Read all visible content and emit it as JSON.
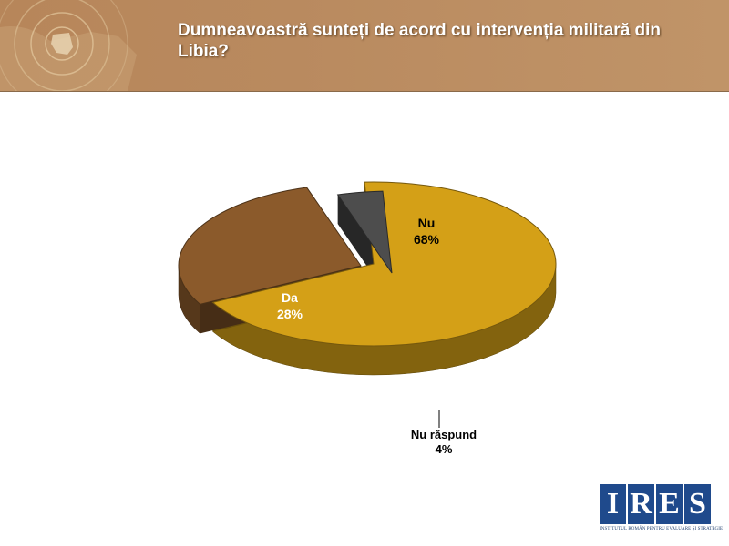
{
  "header": {
    "title": "Dumneavoastră sunteți de acord cu intervenția militară din Libia?"
  },
  "chart_data": {
    "type": "pie",
    "title": "",
    "slices": [
      {
        "label": "Nu",
        "value": 68,
        "value_label": "68%",
        "color": "#d4a017"
      },
      {
        "label": "Da",
        "value": 28,
        "value_label": "28%",
        "color": "#8b5a2b"
      },
      {
        "label": "Nu răspund",
        "value": 4,
        "value_label": "4%",
        "color": "#4d4d4d"
      }
    ],
    "legend": "none",
    "data_labels": true
  },
  "logo": {
    "letters": [
      "I",
      "R",
      "E",
      "S"
    ],
    "subtitle": "INSTITUTUL ROMÂN PENTRU EVALUARE ȘI STRATEGIE"
  },
  "colors": {
    "header_background": "#b9895e",
    "title_text": "#ffffff",
    "logo_blue": "#1f4a8c"
  }
}
